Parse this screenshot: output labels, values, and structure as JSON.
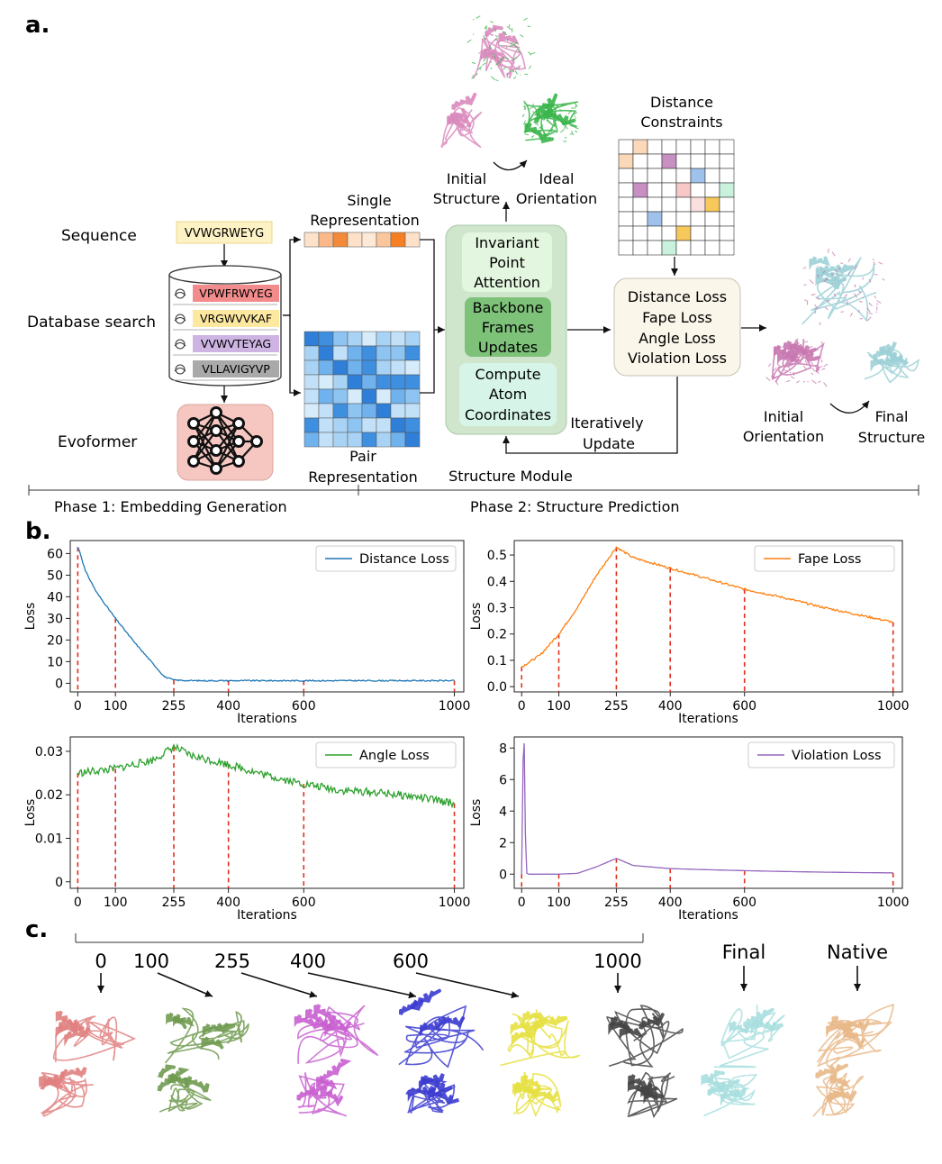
{
  "panel_a": {
    "letter": "a.",
    "left_labels": [
      "Sequence",
      "Database search",
      "Evoformer"
    ],
    "query_sequence": "VVWGRWEYG",
    "msa_sequences": [
      {
        "seq": "VPWFRWYEG",
        "color": "#f28c8c"
      },
      {
        "seq": "VRGWVVKAF",
        "color": "#fde8a0"
      },
      {
        "seq": "VVWVTEYAG",
        "color": "#cdb4e3"
      },
      {
        "seq": "VLLAVIGYVP",
        "color": "#a9a9a9"
      }
    ],
    "single_rep_label": [
      "Single",
      "Representation"
    ],
    "pair_rep_label": [
      "Pair",
      "Representation"
    ],
    "structure_module": {
      "blocks": [
        [
          "Invariant",
          "Point",
          "Attention"
        ],
        [
          "Backbone",
          "Frames",
          "Updates"
        ],
        [
          "Compute",
          "Atom",
          "Coordinates"
        ]
      ],
      "label": "Structure Module"
    },
    "top_left_caption": [
      "Initial",
      "Structure"
    ],
    "top_right_caption": [
      "Ideal",
      "Orientation"
    ],
    "distance_constraints_label": [
      "Distance",
      "Constraints"
    ],
    "losses": [
      "Distance Loss",
      "Fape Loss",
      "Angle Loss",
      "Violation Loss"
    ],
    "iteratively_update": [
      "Iteratively",
      "Update"
    ],
    "initial_orientation": [
      "Initial",
      "Orientation"
    ],
    "final_structure": [
      "Final",
      "Structure"
    ],
    "phase1": "Phase 1: Embedding Generation",
    "phase2": "Phase 2: Structure Prediction"
  },
  "panel_b": {
    "letter": "b."
  },
  "chart_data": [
    {
      "type": "line",
      "legend": "Distance Loss",
      "color": "#1f77b4",
      "xlabel": "Iterations",
      "ylabel": "Loss",
      "xlim": [
        -20,
        1025
      ],
      "ylim": [
        -4,
        66
      ],
      "xticks": [
        0,
        100,
        255,
        400,
        600,
        1000
      ],
      "yticks": [
        0,
        10,
        20,
        30,
        40,
        50,
        60
      ],
      "ytick_labels": [
        "0",
        "10",
        "20",
        "30",
        "40",
        "50",
        "60"
      ],
      "x": [
        0,
        5,
        20,
        50,
        100,
        150,
        200,
        230,
        255,
        300,
        400,
        500,
        600,
        700,
        800,
        900,
        1000
      ],
      "y": [
        63,
        61,
        52,
        42,
        30,
        19,
        9,
        3,
        1.5,
        1.2,
        1.2,
        1.2,
        1.2,
        1.2,
        1.2,
        1.2,
        1.2
      ],
      "noise": 0.3,
      "markers_x": [
        0,
        100,
        255,
        400,
        600,
        1000
      ],
      "markers_y": [
        63,
        30,
        1.5,
        1.2,
        1.2,
        1.2
      ]
    },
    {
      "type": "line",
      "legend": "Fape Loss",
      "color": "#ff7f0e",
      "xlabel": "Iterations",
      "ylabel": "Loss",
      "xlim": [
        -20,
        1025
      ],
      "ylim": [
        -0.02,
        0.555
      ],
      "xticks": [
        0,
        100,
        255,
        400,
        600,
        1000
      ],
      "yticks": [
        0.0,
        0.1,
        0.2,
        0.3,
        0.4,
        0.5
      ],
      "ytick_labels": [
        "0.0",
        "0.1",
        "0.2",
        "0.3",
        "0.4",
        "0.5"
      ],
      "x": [
        0,
        50,
        100,
        150,
        200,
        255,
        300,
        400,
        500,
        600,
        700,
        800,
        900,
        1000
      ],
      "y": [
        0.075,
        0.12,
        0.2,
        0.3,
        0.42,
        0.53,
        0.49,
        0.45,
        0.41,
        0.37,
        0.34,
        0.305,
        0.275,
        0.245
      ],
      "noise": 0.004,
      "markers_x": [
        0,
        100,
        255,
        400,
        600,
        1000
      ],
      "markers_y": [
        0.075,
        0.2,
        0.53,
        0.45,
        0.37,
        0.245
      ]
    },
    {
      "type": "line",
      "legend": "Angle Loss",
      "color": "#2ca02c",
      "xlabel": "Iterations",
      "ylabel": "Loss",
      "xlim": [
        -20,
        1025
      ],
      "ylim": [
        -0.0015,
        0.0333
      ],
      "xticks": [
        0,
        100,
        255,
        400,
        600,
        1000
      ],
      "yticks": [
        0,
        0.01,
        0.02,
        0.03
      ],
      "ytick_labels": [
        "0",
        "0.01",
        "0.02",
        "0.03"
      ],
      "x": [
        0,
        100,
        200,
        255,
        300,
        400,
        500,
        600,
        700,
        800,
        900,
        1000
      ],
      "y": [
        0.025,
        0.026,
        0.028,
        0.031,
        0.029,
        0.027,
        0.0245,
        0.0225,
        0.021,
        0.0205,
        0.0195,
        0.018
      ],
      "noise": 0.0009,
      "markers_x": [
        0,
        100,
        255,
        400,
        600,
        1000
      ],
      "markers_y": [
        0.025,
        0.026,
        0.031,
        0.027,
        0.0225,
        0.018
      ]
    },
    {
      "type": "line",
      "legend": "Violation Loss",
      "color": "#9467bd",
      "xlabel": "Iterations",
      "ylabel": "Loss",
      "xlim": [
        -20,
        1025
      ],
      "ylim": [
        -0.9,
        8.7
      ],
      "xticks": [
        0,
        100,
        255,
        400,
        600,
        1000
      ],
      "yticks": [
        0,
        2,
        4,
        6,
        8
      ],
      "ytick_labels": [
        "0",
        "2",
        "4",
        "6",
        "8"
      ],
      "x": [
        0,
        4,
        7,
        10,
        14,
        20,
        100,
        150,
        200,
        255,
        300,
        400,
        500,
        600,
        700,
        800,
        900,
        1000
      ],
      "y": [
        0,
        7.3,
        8.3,
        2.5,
        0.05,
        0.0,
        0.0,
        0.05,
        0.45,
        1.0,
        0.55,
        0.35,
        0.28,
        0.22,
        0.17,
        0.13,
        0.1,
        0.08
      ],
      "noise": 0.0,
      "markers_x": [
        0,
        100,
        255,
        400,
        600,
        1000
      ],
      "markers_y": [
        0,
        0.0,
        1.0,
        0.35,
        0.22,
        0.08
      ]
    }
  ],
  "panel_c": {
    "letter": "c.",
    "timeline_labels": [
      "0",
      "100",
      "255",
      "400",
      "600",
      "1000"
    ],
    "final_label": "Final",
    "native_label": "Native",
    "structure_colors": [
      "#e08080",
      "#6f9a4f",
      "#c85fd0",
      "#3b3bd0",
      "#e6e040",
      "#444444",
      "#a8dede",
      "#e8b888"
    ]
  }
}
